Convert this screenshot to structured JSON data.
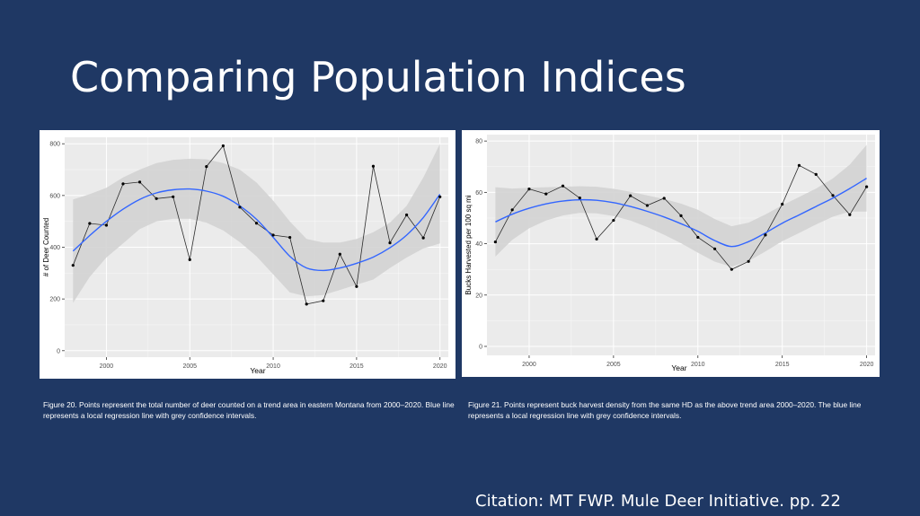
{
  "slide": {
    "title": "Comparing Population Indices",
    "citation": "Citation: MT FWP. Mule Deer Initiative. pp. 22"
  },
  "captions": {
    "left": "Figure 20. Points represent the total number of deer counted on a trend area in eastern Montana from 2000–2020. Blue line represents a local regression line with grey confidence intervals.",
    "right": "Figure 21. Points represent buck harvest density from the same HD as the above trend area 2000–2020. The blue line represents a local regression line with grey confidence intervals."
  },
  "colors": {
    "background": "#1f3864",
    "plot_panel": "#ebebeb",
    "grid": "#ffffff",
    "ribbon": "#d3d3d3",
    "smooth_line": "#3366ff",
    "points": "#000000"
  },
  "chart_data": [
    {
      "type": "line",
      "xlabel": "Year",
      "ylabel": "# of Deer Counted",
      "xlim": [
        1997.5,
        2020.5
      ],
      "ylim": [
        -25,
        825
      ],
      "xticks": [
        2000,
        2005,
        2010,
        2015,
        2020
      ],
      "yticks": [
        0,
        200,
        400,
        600,
        800
      ],
      "grid": true,
      "legend": "none",
      "observed": {
        "x": [
          1998,
          1999,
          2000,
          2001,
          2002,
          2003,
          2004,
          2005,
          2006,
          2007,
          2008,
          2009,
          2010,
          2011,
          2012,
          2013,
          2014,
          2015,
          2016,
          2017,
          2018,
          2019,
          2020
        ],
        "y": [
          330,
          492,
          485,
          645,
          652,
          588,
          595,
          352,
          712,
          792,
          555,
          493,
          447,
          438,
          180,
          193,
          373,
          248,
          713,
          417,
          525,
          436,
          595
        ]
      },
      "smooth": {
        "x": [
          1998,
          1999,
          2000,
          2001,
          2002,
          2003,
          2004,
          2005,
          2006,
          2007,
          2008,
          2009,
          2010,
          2011,
          2012,
          2013,
          2014,
          2015,
          2016,
          2017,
          2018,
          2019,
          2020
        ],
        "y": [
          385,
          445,
          500,
          547,
          585,
          610,
          622,
          625,
          617,
          597,
          560,
          508,
          438,
          365,
          320,
          310,
          320,
          338,
          362,
          398,
          447,
          515,
          605
        ],
        "lower": [
          185,
          285,
          360,
          415,
          470,
          500,
          510,
          510,
          495,
          465,
          420,
          365,
          295,
          225,
          210,
          215,
          235,
          255,
          275,
          320,
          360,
          395,
          415
        ],
        "upper": [
          585,
          605,
          630,
          670,
          700,
          725,
          738,
          742,
          740,
          725,
          700,
          650,
          580,
          500,
          432,
          418,
          418,
          432,
          458,
          495,
          560,
          670,
          800
        ]
      }
    },
    {
      "type": "line",
      "xlabel": "Year",
      "ylabel": "Bucks Harvested per 100 sq mi",
      "xlim": [
        1997.5,
        2020.5
      ],
      "ylim": [
        -3.5,
        82.5
      ],
      "xticks": [
        2000,
        2005,
        2010,
        2015,
        2020
      ],
      "yticks": [
        0,
        20,
        40,
        60,
        80
      ],
      "grid": true,
      "legend": "none",
      "observed": {
        "x": [
          1998,
          1999,
          2000,
          2001,
          2002,
          2003,
          2004,
          2005,
          2006,
          2007,
          2008,
          2009,
          2010,
          2011,
          2012,
          2013,
          2014,
          2015,
          2016,
          2017,
          2018,
          2019,
          2020
        ],
        "y": [
          40.7,
          53.2,
          61.3,
          59.4,
          62.5,
          57.8,
          41.8,
          49.1,
          58.7,
          54.9,
          57.7,
          50.9,
          42.5,
          38.0,
          30.0,
          33.1,
          43.4,
          55.4,
          70.5,
          67.0,
          58.8,
          51.3,
          62.2
        ]
      },
      "smooth": {
        "x": [
          1998,
          1999,
          2000,
          2001,
          2002,
          2003,
          2004,
          2005,
          2006,
          2007,
          2008,
          2009,
          2010,
          2011,
          2012,
          2013,
          2014,
          2015,
          2016,
          2017,
          2018,
          2019,
          2020
        ],
        "y": [
          48.5,
          51.5,
          53.8,
          55.5,
          56.6,
          57.1,
          56.9,
          56.0,
          54.5,
          52.6,
          50.4,
          47.8,
          44.8,
          41.2,
          38.9,
          40.8,
          44.2,
          48.0,
          51.2,
          54.5,
          57.8,
          61.5,
          65.5
        ],
        "lower": [
          35.0,
          41.5,
          46.0,
          49.0,
          51.0,
          52.0,
          51.8,
          50.8,
          49.0,
          46.5,
          43.5,
          40.2,
          36.5,
          33.0,
          31.0,
          33.2,
          37.0,
          41.0,
          44.2,
          47.5,
          50.5,
          52.5,
          52.5
        ],
        "upper": [
          62.0,
          61.5,
          61.8,
          62.0,
          62.2,
          62.4,
          62.2,
          61.4,
          60.2,
          58.8,
          57.4,
          55.6,
          53.2,
          49.6,
          46.8,
          48.2,
          51.4,
          55.0,
          58.2,
          61.5,
          65.4,
          70.8,
          78.5
        ]
      }
    }
  ]
}
